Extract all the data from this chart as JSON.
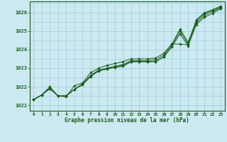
{
  "title": "Graphe pression niveau de la mer (hPa)",
  "bg_color": "#cce8f0",
  "grid_color": "#99ccdd",
  "line_color": "#1a5c1a",
  "marker_color": "#1a5c1a",
  "xlim": [
    -0.5,
    23.5
  ],
  "ylim": [
    1020.7,
    1026.6
  ],
  "yticks": [
    1021,
    1022,
    1023,
    1024,
    1025,
    1026
  ],
  "xticks": [
    0,
    1,
    2,
    3,
    4,
    5,
    6,
    7,
    8,
    9,
    10,
    11,
    12,
    13,
    14,
    15,
    16,
    17,
    18,
    19,
    20,
    21,
    22,
    23
  ],
  "series": [
    [
      1021.3,
      1021.55,
      1021.9,
      1021.5,
      1021.5,
      1021.85,
      1022.1,
      1022.55,
      1022.85,
      1022.95,
      1023.05,
      1023.1,
      1023.35,
      1023.35,
      1023.35,
      1023.35,
      1023.6,
      1024.15,
      1024.85,
      1024.2,
      1025.35,
      1025.75,
      1025.95,
      1026.2
    ],
    [
      1021.3,
      1021.55,
      1021.9,
      1021.5,
      1021.5,
      1021.85,
      1022.1,
      1022.55,
      1022.85,
      1022.95,
      1023.05,
      1023.15,
      1023.35,
      1023.35,
      1023.35,
      1023.35,
      1023.6,
      1024.2,
      1025.0,
      1024.3,
      1025.45,
      1025.85,
      1026.05,
      1026.25
    ],
    [
      1021.3,
      1021.55,
      1021.9,
      1021.5,
      1021.5,
      1021.85,
      1022.15,
      1022.6,
      1022.9,
      1023.0,
      1023.1,
      1023.2,
      1023.4,
      1023.4,
      1023.4,
      1023.45,
      1023.7,
      1024.3,
      1025.1,
      1024.4,
      1025.55,
      1025.95,
      1026.1,
      1026.3
    ],
    [
      1021.3,
      1021.55,
      1022.0,
      1021.5,
      1021.45,
      1022.05,
      1022.2,
      1022.75,
      1023.0,
      1023.15,
      1023.25,
      1023.35,
      1023.5,
      1023.5,
      1023.5,
      1023.55,
      1023.8,
      1024.3,
      1024.3,
      1024.25,
      1025.6,
      1026.0,
      1026.15,
      1026.35
    ]
  ]
}
